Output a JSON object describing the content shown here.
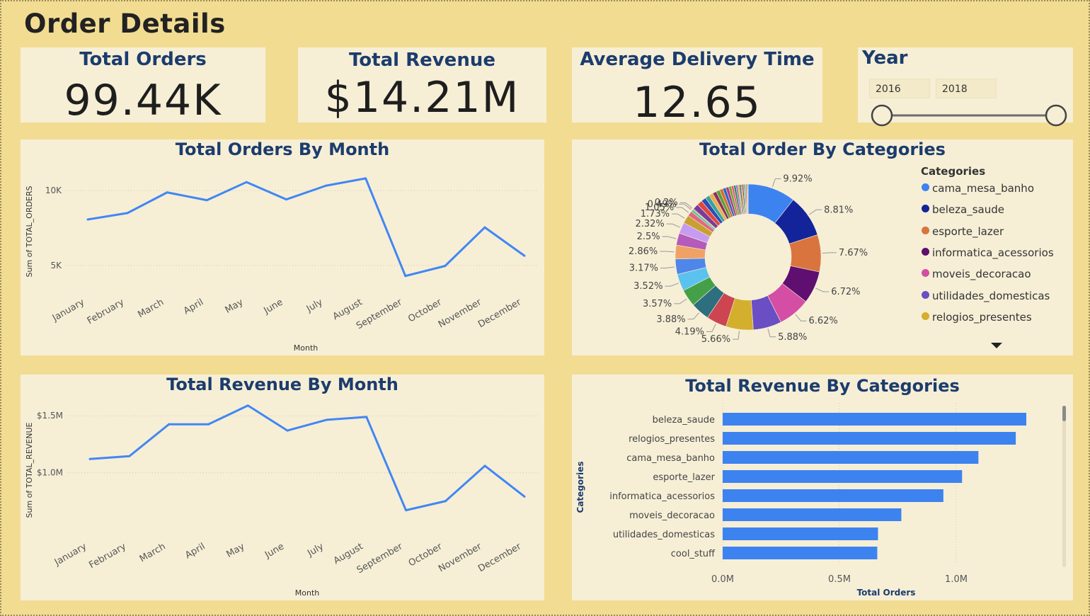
{
  "page": {
    "title": "Order Details"
  },
  "kpis": {
    "orders": {
      "title": "Total Orders",
      "value": "99.44K"
    },
    "revenue": {
      "title": "Total Revenue",
      "value": "$14.21M"
    },
    "delivery": {
      "title": "Average Delivery Time",
      "value": "12.65"
    }
  },
  "year_slicer": {
    "label": "Year",
    "start": "2016",
    "end": "2018",
    "range_fraction": [
      0,
      1
    ]
  },
  "colors": {
    "line": "#4286f4",
    "bar": "#3d83f0",
    "title": "#1c3c6e",
    "panel_bg": "#f6efd6",
    "page_bg": "#f2dc92"
  },
  "chart_data": [
    {
      "id": "orders-by-month",
      "type": "line",
      "title": "Total Orders By Month",
      "xlabel": "Month",
      "ylabel": "Sum of TOTAL_ORDERS",
      "categories": [
        "January",
        "February",
        "March",
        "April",
        "May",
        "June",
        "July",
        "August",
        "September",
        "October",
        "November",
        "December"
      ],
      "values": [
        8070,
        8500,
        9880,
        9360,
        10570,
        9410,
        10330,
        10820,
        4290,
        4960,
        7540,
        5640
      ],
      "ylim": [
        3000,
        12000
      ],
      "yticks": [
        {
          "value": 5000,
          "label": "5K"
        },
        {
          "value": 10000,
          "label": "10K"
        }
      ],
      "grid": true
    },
    {
      "id": "revenue-by-month",
      "type": "line",
      "title": "Total Revenue By Month",
      "xlabel": "Month",
      "ylabel": "Sum of TOTAL_REVENUE",
      "categories": [
        "January",
        "February",
        "March",
        "April",
        "May",
        "June",
        "July",
        "August",
        "September",
        "October",
        "November",
        "December"
      ],
      "values": [
        1120000,
        1145000,
        1425000,
        1425000,
        1590000,
        1370000,
        1465000,
        1490000,
        670000,
        750000,
        1060000,
        790000
      ],
      "ylim": [
        400000,
        1800000
      ],
      "yticks": [
        {
          "value": 1000000,
          "label": "$1.0M"
        },
        {
          "value": 1500000,
          "label": "$1.5M"
        }
      ],
      "grid": true
    },
    {
      "id": "orders-by-categories",
      "type": "pie",
      "title": "Total Order By Categories",
      "legend_title": "Categories",
      "legend_position": "right",
      "legend": [
        {
          "name": "cama_mesa_banho",
          "color": "#3d83f0"
        },
        {
          "name": "beleza_saude",
          "color": "#13249a"
        },
        {
          "name": "esporte_lazer",
          "color": "#d9743f"
        },
        {
          "name": "informatica_acessorios",
          "color": "#5e0f70"
        },
        {
          "name": "moveis_decoracao",
          "color": "#d44ea5"
        },
        {
          "name": "utilidades_domesticas",
          "color": "#6a4ec4"
        },
        {
          "name": "relogios_presentes",
          "color": "#d4ae2d"
        }
      ],
      "slices": [
        {
          "value": 9.92,
          "label": "9.92%",
          "color": "#3d83f0"
        },
        {
          "value": 8.81,
          "label": "8.81%",
          "color": "#13249a"
        },
        {
          "value": 7.67,
          "label": "7.67%",
          "color": "#d9743f"
        },
        {
          "value": 6.72,
          "label": "6.72%",
          "color": "#5e0f70"
        },
        {
          "value": 6.62,
          "label": "6.62%",
          "color": "#d44ea5"
        },
        {
          "value": 5.88,
          "label": "5.88%",
          "color": "#6a4ec4"
        },
        {
          "value": 5.66,
          "label": "5.66%",
          "color": "#d4ae2d"
        },
        {
          "value": 4.19,
          "label": "4.19%",
          "color": "#cc4550"
        },
        {
          "value": 3.88,
          "label": "3.88%",
          "color": "#2e6f7f"
        },
        {
          "value": 3.57,
          "label": "3.57%",
          "color": "#44a048"
        },
        {
          "value": 3.52,
          "label": "3.52%",
          "color": "#5bc2ef"
        },
        {
          "value": 3.17,
          "label": "3.17%",
          "color": "#4f86ea"
        },
        {
          "value": 2.86,
          "label": "2.86%",
          "color": "#f0a264"
        },
        {
          "value": 2.5,
          "label": "2.5%",
          "color": "#b45bbb"
        },
        {
          "value": 2.32,
          "label": "2.32%",
          "color": "#c69cf0"
        },
        {
          "value": 1.73,
          "label": "1.73%",
          "color": "#c8a032"
        },
        {
          "value": 1.05,
          "label": "1.05%",
          "color": "#e06880"
        },
        {
          "value": 0.49,
          "label": "0.49%",
          "color": "#4ec59a"
        },
        {
          "value": 0.2,
          "label": "0.2%",
          "color": "#a58d5a"
        },
        {
          "value": 1.2,
          "label": "",
          "color": "#7d3a9a"
        },
        {
          "value": 1.1,
          "label": "",
          "color": "#e0463d"
        },
        {
          "value": 1.0,
          "label": "",
          "color": "#2a4eb8"
        },
        {
          "value": 0.9,
          "label": "",
          "color": "#3aa0a0"
        },
        {
          "value": 0.85,
          "label": "",
          "color": "#e8b04d"
        },
        {
          "value": 0.8,
          "label": "",
          "color": "#8e2f5a"
        },
        {
          "value": 0.75,
          "label": "",
          "color": "#5a9e3a"
        },
        {
          "value": 0.7,
          "label": "",
          "color": "#d06f2f"
        },
        {
          "value": 0.65,
          "label": "",
          "color": "#3062c8"
        },
        {
          "value": 0.6,
          "label": "",
          "color": "#b03a8a"
        },
        {
          "value": 0.55,
          "label": "",
          "color": "#70a830"
        },
        {
          "value": 0.5,
          "label": "",
          "color": "#e85a8a"
        },
        {
          "value": 0.45,
          "label": "",
          "color": "#2a8a5a"
        },
        {
          "value": 0.4,
          "label": "",
          "color": "#9a6ad0"
        },
        {
          "value": 0.35,
          "label": "",
          "color": "#c0c040"
        },
        {
          "value": 0.3,
          "label": "",
          "color": "#404a90"
        },
        {
          "value": 0.3,
          "label": "",
          "color": "#d09050"
        },
        {
          "value": 0.25,
          "label": "",
          "color": "#6a3a2a"
        },
        {
          "value": 0.25,
          "label": "",
          "color": "#3ab0d0"
        },
        {
          "value": 0.2,
          "label": "",
          "color": "#908060"
        },
        {
          "value": 0.2,
          "label": "",
          "color": "#c04040"
        },
        {
          "value": 0.15,
          "label": "",
          "color": "#505050"
        },
        {
          "value": 0.15,
          "label": "",
          "color": "#80a0c0"
        }
      ]
    },
    {
      "id": "revenue-by-categories",
      "type": "bar",
      "orientation": "horizontal",
      "title": "Total Revenue By Categories",
      "xlabel": "Total Orders",
      "ylabel": "Categories",
      "categories": [
        "beleza_saude",
        "relogios_presentes",
        "cama_mesa_banho",
        "esporte_lazer",
        "informatica_acessorios",
        "moveis_decoracao",
        "utilidades_domesticas",
        "cool_stuff"
      ],
      "values": [
        1300000,
        1255000,
        1095000,
        1025000,
        945000,
        765000,
        665000,
        662000
      ],
      "xlim": [
        0,
        1400000
      ],
      "xticks": [
        {
          "value": 0,
          "label": "0.0M"
        },
        {
          "value": 500000,
          "label": "0.5M"
        },
        {
          "value": 1000000,
          "label": "1.0M"
        }
      ],
      "grid": true
    }
  ]
}
